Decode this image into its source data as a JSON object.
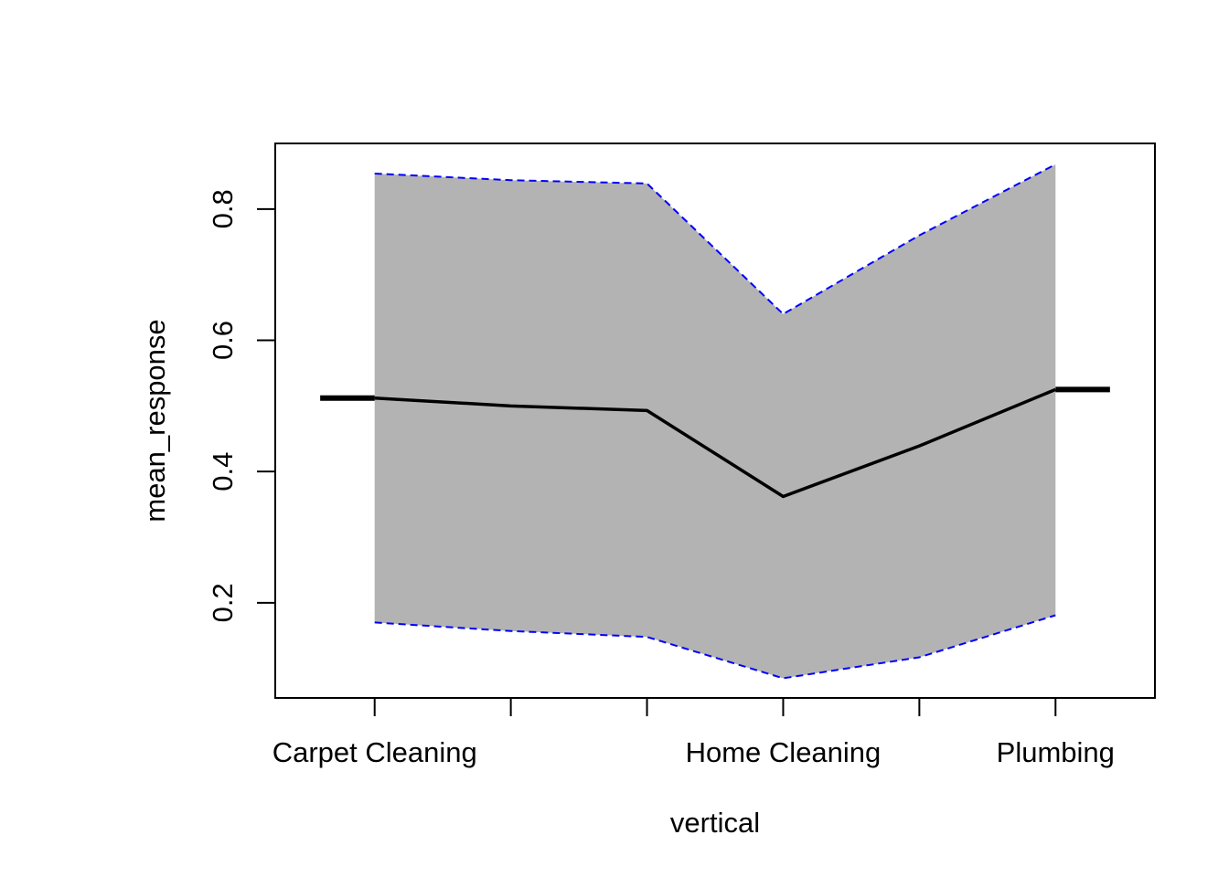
{
  "chart_data": {
    "type": "line",
    "xlabel": "vertical",
    "ylabel": "mean_response",
    "x": [
      1,
      2,
      3,
      4,
      5,
      6
    ],
    "xlim": [
      0.27,
      6.73
    ],
    "ylim": [
      0.055,
      0.9
    ],
    "x_tick_positions": [
      1,
      2,
      3,
      4,
      5,
      6
    ],
    "x_tick_labels": [
      {
        "x": 1,
        "label": "Carpet Cleaning"
      },
      {
        "x": 4,
        "label": "Home Cleaning"
      },
      {
        "x": 6,
        "label": "Plumbing"
      }
    ],
    "y_ticks": [
      0.2,
      0.4,
      0.6,
      0.8
    ],
    "y_tick_labels": [
      "0.2",
      "0.4",
      "0.6",
      "0.8"
    ],
    "series": [
      {
        "values": [
          0.512,
          0.5,
          0.493,
          0.362,
          0.439,
          0.525
        ]
      }
    ],
    "upper": [
      0.854,
      0.844,
      0.839,
      0.64,
      0.76,
      0.868
    ],
    "lower": [
      0.17,
      0.157,
      0.148,
      0.085,
      0.117,
      0.181
    ],
    "end_segments": {
      "left_x": 0.6,
      "right_x": 6.4
    },
    "colors": {
      "band_fill": "#b3b3b3",
      "band_edge": "#0000ff",
      "line": "#000000",
      "axis": "#000000"
    },
    "grid": false,
    "legend": "none"
  }
}
